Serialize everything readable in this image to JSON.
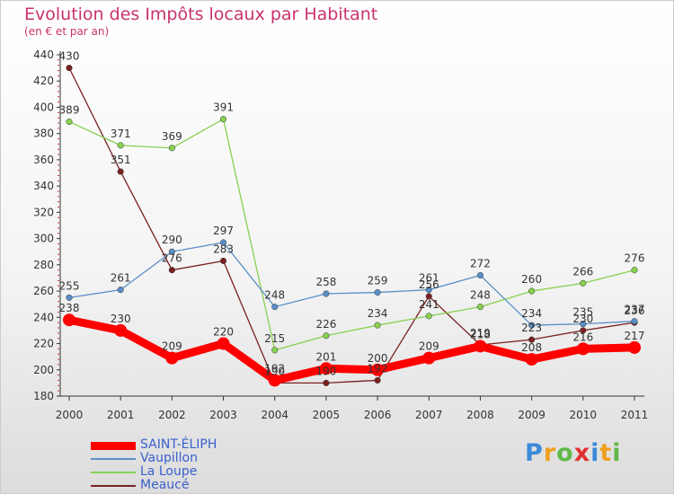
{
  "chart_data": {
    "type": "line",
    "title": "Evolution des Impôts locaux par Habitant",
    "subtitle": "(en € et par an)",
    "xlabel": "",
    "ylabel": "",
    "x": [
      "2000",
      "2001",
      "2002",
      "2003",
      "2004",
      "2005",
      "2006",
      "2007",
      "2008",
      "2009",
      "2010",
      "2011"
    ],
    "ylim": [
      180,
      440
    ],
    "yticks": [
      180,
      200,
      220,
      240,
      260,
      280,
      300,
      320,
      340,
      360,
      380,
      400,
      420,
      440
    ],
    "grid": false,
    "legend_position": "bottom-left",
    "series": [
      {
        "name": "SAINT-ÉLIPH",
        "color": "#ff0000",
        "values": [
          238,
          230,
          209,
          220,
          192,
          201,
          200,
          209,
          218,
          208,
          216,
          217
        ]
      },
      {
        "name": "Vaupillon",
        "color": "#5a8fc8",
        "values": [
          255,
          261,
          290,
          297,
          248,
          258,
          259,
          261,
          272,
          234,
          235,
          237
        ]
      },
      {
        "name": "La Loupe",
        "color": "#88d050",
        "values": [
          389,
          371,
          369,
          391,
          215,
          226,
          234,
          241,
          248,
          260,
          266,
          276
        ]
      },
      {
        "name": "Meaucé",
        "color": "#7a2020",
        "values": [
          430,
          351,
          276,
          283,
          190,
          190,
          192,
          256,
          219,
          223,
          230,
          236
        ]
      }
    ]
  },
  "logo": {
    "text": "Proxiti",
    "letters": [
      "P",
      "r",
      "o",
      "x",
      "i",
      "t",
      "i"
    ],
    "colors": [
      "#3c8ad8",
      "#f0a020",
      "#60b848",
      "#e03030",
      "#3c8ad8",
      "#f0a020",
      "#60b848"
    ]
  }
}
